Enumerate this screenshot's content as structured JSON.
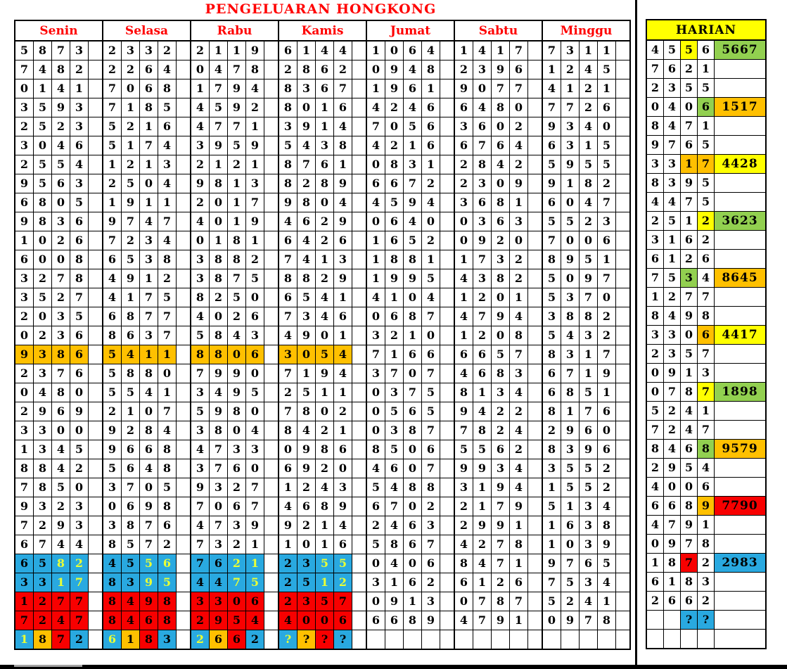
{
  "title": "PENGELUARAN HONGKONG",
  "colors": {
    "orange": "#FFC000",
    "blue": "#29A9E0",
    "red": "#F80000",
    "yellow": "#FFFF00",
    "green": "#92D050",
    "yellow_digit": "#E9FF35",
    "black": "#000000",
    "header_red": "#FF0000"
  },
  "main_table": {
    "days": [
      {
        "label": "Senin",
        "rows": [
          "5873",
          "7482",
          "0141",
          "3593",
          "2523",
          "3046",
          "2554",
          "9563",
          "6805",
          "9836",
          "1026",
          "6008",
          "3278",
          "3527",
          "2035",
          "0236",
          "9386",
          "2376",
          "0480",
          "2969",
          "3300",
          "1345",
          "8842",
          "7850",
          "9323",
          "7293",
          "6744",
          "6582",
          "3317",
          "1277",
          "7247",
          "1872"
        ]
      },
      {
        "label": "Selasa",
        "rows": [
          "2332",
          "2264",
          "7068",
          "7185",
          "5216",
          "5174",
          "1213",
          "2504",
          "1911",
          "9747",
          "7234",
          "6538",
          "4912",
          "4175",
          "6877",
          "8637",
          "5411",
          "5880",
          "5541",
          "2107",
          "9284",
          "9668",
          "5648",
          "3705",
          "0698",
          "3876",
          "8572",
          "4556",
          "8395",
          "8498",
          "8468",
          "6183"
        ]
      },
      {
        "label": "Rabu",
        "rows": [
          "2119",
          "0478",
          "1794",
          "4592",
          "4771",
          "3959",
          "2121",
          "9813",
          "2017",
          "4019",
          "0181",
          "3882",
          "3875",
          "8250",
          "4026",
          "5843",
          "8806",
          "7990",
          "3495",
          "5980",
          "3804",
          "4733",
          "3760",
          "9327",
          "7067",
          "4739",
          "7321",
          "7621",
          "4475",
          "3306",
          "2954",
          "2662"
        ]
      },
      {
        "label": "Kamis",
        "rows": [
          "6144",
          "2862",
          "8367",
          "8016",
          "3914",
          "5438",
          "8761",
          "8289",
          "9804",
          "4629",
          "6426",
          "7413",
          "8829",
          "6541",
          "7346",
          "4901",
          "3054",
          "7194",
          "2511",
          "7802",
          "8421",
          "0986",
          "6920",
          "1243",
          "4689",
          "9214",
          "1016",
          "2355",
          "2512",
          "2357",
          "4006",
          "????"
        ]
      },
      {
        "label": "Jumat",
        "rows": [
          "1064",
          "0948",
          "1961",
          "4246",
          "7056",
          "4216",
          "0831",
          "6672",
          "4594",
          "0640",
          "1652",
          "1881",
          "1995",
          "4104",
          "0687",
          "3210",
          "7166",
          "3707",
          "0375",
          "0565",
          "0387",
          "8506",
          "4607",
          "5488",
          "6702",
          "2463",
          "5867",
          "0406",
          "3162",
          "0913",
          "6689",
          "    "
        ]
      },
      {
        "label": "Sabtu",
        "rows": [
          "1417",
          "2396",
          "9077",
          "6480",
          "3602",
          "6764",
          "2842",
          "2309",
          "3681",
          "0363",
          "0920",
          "1732",
          "4382",
          "1201",
          "4794",
          "1208",
          "6657",
          "4683",
          "8134",
          "9422",
          "7824",
          "5562",
          "9934",
          "3194",
          "2179",
          "2991",
          "4278",
          "8471",
          "6126",
          "0787",
          "4791",
          "    "
        ]
      },
      {
        "label": "Minggu",
        "rows": [
          "7311",
          "1245",
          "4121",
          "7726",
          "9340",
          "6315",
          "5955",
          "9182",
          "6047",
          "5523",
          "7006",
          "8951",
          "5097",
          "5370",
          "3882",
          "5432",
          "8317",
          "6719",
          "6851",
          "8176",
          "2960",
          "8396",
          "3552",
          "1552",
          "5134",
          "1638",
          "1039",
          "9765",
          "7534",
          "5241",
          "0978",
          "    "
        ]
      }
    ],
    "highlights": {
      "colored_day_count": 4,
      "orange_row": 16,
      "blue_rows": [
        27,
        28
      ],
      "blue_yellow_digits": [
        2,
        3
      ],
      "red_rows": [
        29,
        30
      ],
      "mixed_row": 31,
      "mixed_pattern": [
        {
          "bg": "blue",
          "fg": "yellow_digit"
        },
        {
          "bg": "orange",
          "fg": "black"
        },
        {
          "bg": "red",
          "fg": "black"
        },
        {
          "bg": "blue",
          "fg": "black"
        }
      ]
    }
  },
  "harian": {
    "header": "HARIAN",
    "rows": [
      {
        "digits": "4556",
        "digit_bg": {
          "2": "yellow"
        },
        "result": "5667",
        "result_bg": "green"
      },
      {
        "digits": "7621"
      },
      {
        "digits": "2355"
      },
      {
        "digits": "0406",
        "digit_bg": {
          "3": "green"
        },
        "result": "1517",
        "result_bg": "orange"
      },
      {
        "digits": "8471"
      },
      {
        "digits": "9765"
      },
      {
        "digits": "3317",
        "digit_bg": {
          "2": "orange",
          "3": "orange"
        },
        "result": "4428",
        "result_bg": "yellow"
      },
      {
        "digits": "8395"
      },
      {
        "digits": "4475"
      },
      {
        "digits": "2512",
        "digit_bg": {
          "3": "yellow"
        },
        "result": "3623",
        "result_bg": "green"
      },
      {
        "digits": "3162"
      },
      {
        "digits": "6126"
      },
      {
        "digits": "7534",
        "digit_bg": {
          "2": "green"
        },
        "result": "8645",
        "result_bg": "orange"
      },
      {
        "digits": "1277"
      },
      {
        "digits": "8498"
      },
      {
        "digits": "3306",
        "digit_bg": {
          "3": "orange"
        },
        "result": "4417",
        "result_bg": "yellow"
      },
      {
        "digits": "2357"
      },
      {
        "digits": "0913"
      },
      {
        "digits": "0787",
        "digit_bg": {
          "3": "yellow"
        },
        "result": "1898",
        "result_bg": "green"
      },
      {
        "digits": "5241"
      },
      {
        "digits": "7247"
      },
      {
        "digits": "8468",
        "digit_bg": {
          "3": "green"
        },
        "result": "9579",
        "result_bg": "orange"
      },
      {
        "digits": "2954"
      },
      {
        "digits": "4006"
      },
      {
        "digits": "6689",
        "digit_bg": {
          "3": "orange"
        },
        "result": "7790",
        "result_bg": "red"
      },
      {
        "digits": "4791"
      },
      {
        "digits": "0978"
      },
      {
        "digits": "1872",
        "digit_bg": {
          "2": "red"
        },
        "result": "2983",
        "result_bg": "blue"
      },
      {
        "digits": "6183"
      },
      {
        "digits": "2662"
      },
      {
        "digits": "  ??",
        "digit_bg": {
          "2": "blue",
          "3": "blue"
        }
      },
      {
        "digits": "    "
      }
    ]
  }
}
